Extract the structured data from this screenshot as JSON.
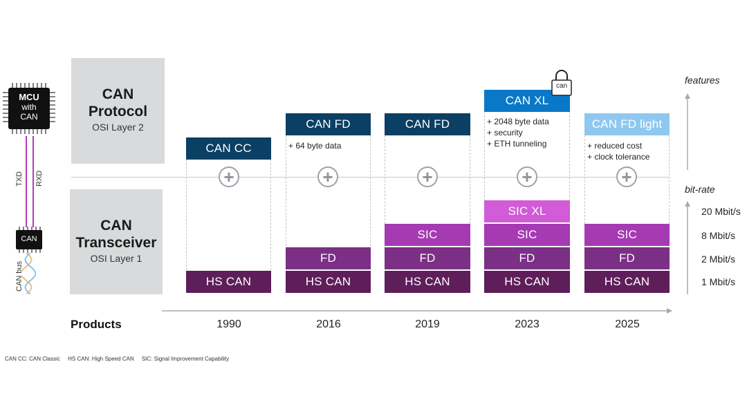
{
  "left": {
    "mcu": {
      "line1": "MCU",
      "line2": "with",
      "line3": "CAN"
    },
    "txd": "TXD",
    "rxd": "RXD",
    "transceiver_chip": "CAN",
    "bus_label": "CAN bus"
  },
  "rows": {
    "protocol": {
      "title_line1": "CAN",
      "title_line2": "Protocol",
      "sub": "OSI Layer 2"
    },
    "transceiver": {
      "title_line1": "CAN",
      "title_line2": "Transceiver",
      "sub": "OSI Layer 1"
    }
  },
  "columns": [
    {
      "year": "1990",
      "protocol": "CAN CC",
      "features": [],
      "transceiver": [
        "HS CAN"
      ]
    },
    {
      "year": "2016",
      "protocol": "CAN FD",
      "features": [
        "+ 64 byte data"
      ],
      "transceiver": [
        "HS CAN",
        "FD"
      ]
    },
    {
      "year": "2019",
      "protocol": "CAN FD",
      "features": [],
      "transceiver": [
        "HS CAN",
        "FD",
        "SIC"
      ]
    },
    {
      "year": "2023",
      "protocol": "CAN XL",
      "features": [
        "+ 2048 byte data",
        "+ security",
        "+ ETH tunneling"
      ],
      "transceiver": [
        "HS CAN",
        "FD",
        "SIC",
        "SIC XL"
      ]
    },
    {
      "year": "2025",
      "protocol": "CAN FD light",
      "features": [
        "+ reduced cost",
        "+ clock tolerance"
      ],
      "transceiver": [
        "HS CAN",
        "FD",
        "SIC"
      ]
    }
  ],
  "lock_label": "can",
  "products_label": "Products",
  "axes": {
    "features": "features",
    "bitrate": "bit-rate"
  },
  "bitrates": [
    "1 Mbit/s",
    "2 Mbit/s",
    "8 Mbit/s",
    "20 Mbit/s"
  ],
  "footnote": "CAN CC: CAN Classic     HS CAN: High Speed CAN     SIC: Signal Improvement Capability",
  "colors": {
    "protocol_navy": "#0b3f63",
    "can_xl_blue": "#0a78c8",
    "can_fd_light": "#8ec8f0",
    "hs_can": "#5d1e5a",
    "fd": "#7b2f85",
    "sic": "#a53ab3",
    "sic_xl": "#d25bd8",
    "panel_gray": "#d8dadc"
  }
}
